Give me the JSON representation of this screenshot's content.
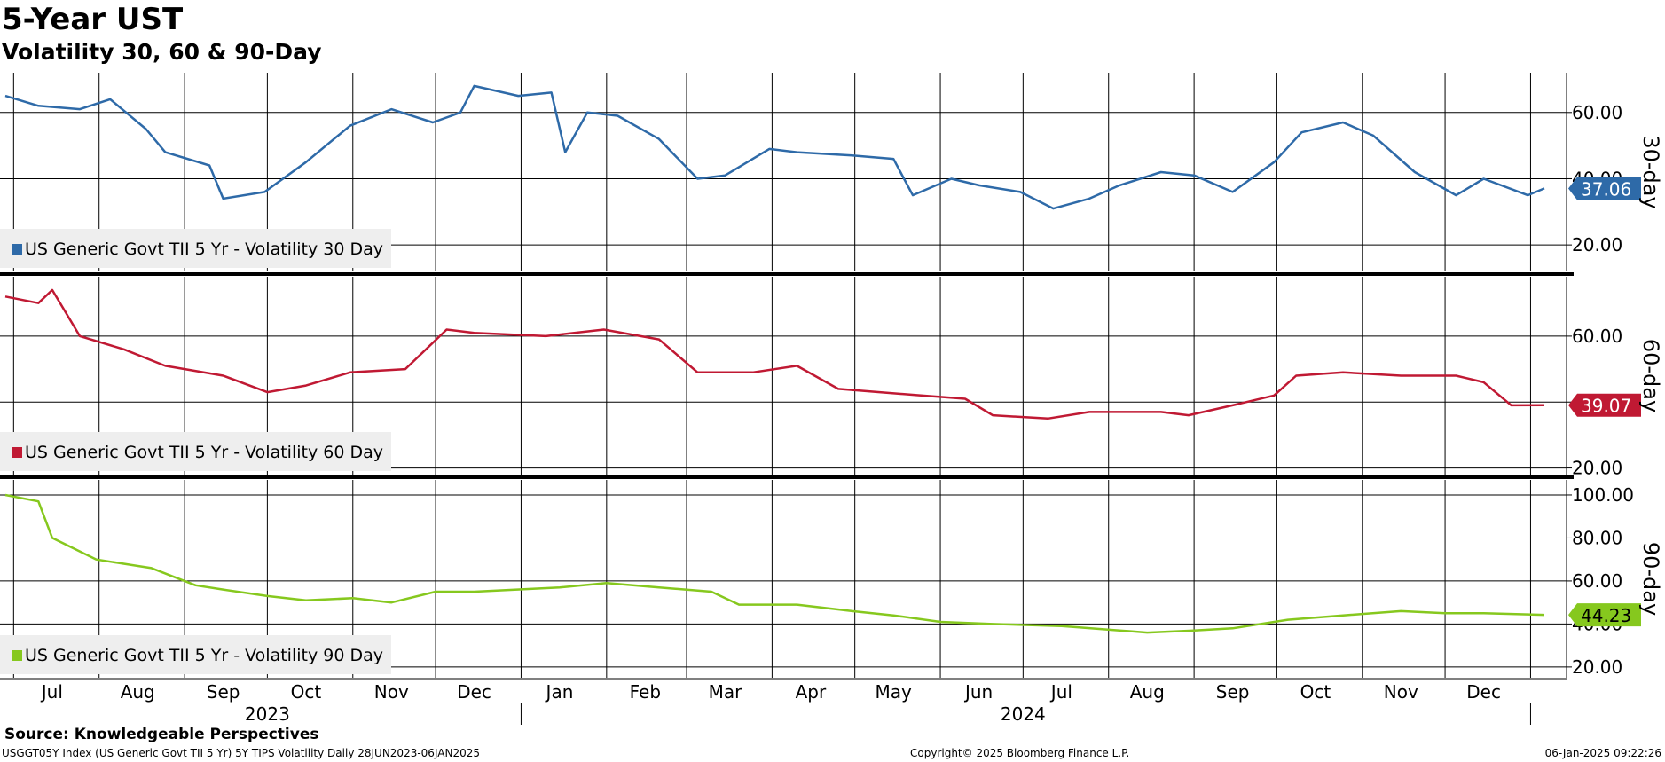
{
  "header": {
    "title": "5-Year UST",
    "subtitle": "Volatility 30, 60 & 90-Day"
  },
  "footer": {
    "source": "Source: Knowledgeable Perspectives",
    "description": "USGGT05Y Index (US Generic Govt TII 5 Yr) 5Y TIPS Volatility  Daily 28JUN2023-06JAN2025",
    "copyright": "Copyright© 2025 Bloomberg Finance L.P.",
    "timestamp": "06-Jan-2025 09:22:26"
  },
  "chart_data": [
    {
      "type": "line",
      "axis_title": "30-day",
      "legend": "US Generic Govt TII 5 Yr - Volatility 30 Day",
      "color": "#2e6aa8",
      "last_value": "37.06",
      "ylim": [
        12,
        72
      ],
      "yticks": [
        {
          "v": 20,
          "label": "20.00"
        },
        {
          "v": 40,
          "label": "40.00"
        },
        {
          "v": 60,
          "label": "60.00"
        }
      ],
      "x": [
        "2023-06-28",
        "2023-07-10",
        "2023-07-25",
        "2023-08-05",
        "2023-08-18",
        "2023-08-25",
        "2023-09-10",
        "2023-09-15",
        "2023-09-30",
        "2023-10-15",
        "2023-10-31",
        "2023-11-15",
        "2023-11-30",
        "2023-12-10",
        "2023-12-15",
        "2023-12-31",
        "2024-01-12",
        "2024-01-17",
        "2024-01-25",
        "2024-02-05",
        "2024-02-20",
        "2024-03-05",
        "2024-03-15",
        "2024-03-31",
        "2024-04-10",
        "2024-04-30",
        "2024-05-15",
        "2024-05-22",
        "2024-06-05",
        "2024-06-15",
        "2024-06-30",
        "2024-07-12",
        "2024-07-25",
        "2024-08-05",
        "2024-08-20",
        "2024-09-01",
        "2024-09-15",
        "2024-09-30",
        "2024-10-10",
        "2024-10-25",
        "2024-11-05",
        "2024-11-20",
        "2024-12-05",
        "2024-12-15",
        "2024-12-31",
        "2025-01-06"
      ],
      "values": [
        65,
        62,
        61,
        64,
        55,
        48,
        44,
        34,
        36,
        45,
        56,
        61,
        57,
        60,
        68,
        65,
        66,
        48,
        60,
        59,
        52,
        40,
        41,
        49,
        48,
        47,
        46,
        35,
        40,
        38,
        36,
        31,
        34,
        38,
        42,
        41,
        36,
        45,
        54,
        57,
        53,
        42,
        35,
        40,
        35,
        37.06
      ]
    },
    {
      "type": "line",
      "axis_title": "60-day",
      "legend": "US Generic Govt TII 5 Yr - Volatility 60 Day",
      "color": "#c01933",
      "last_value": "39.07",
      "ylim": [
        18,
        78
      ],
      "yticks": [
        {
          "v": 20,
          "label": "20.00"
        },
        {
          "v": 40,
          "label": "40.00"
        },
        {
          "v": 60,
          "label": "60.00"
        }
      ],
      "x": [
        "2023-06-28",
        "2023-07-10",
        "2023-07-15",
        "2023-07-25",
        "2023-08-10",
        "2023-08-25",
        "2023-09-15",
        "2023-10-01",
        "2023-10-15",
        "2023-10-31",
        "2023-11-20",
        "2023-12-05",
        "2023-12-15",
        "2024-01-10",
        "2024-01-31",
        "2024-02-20",
        "2024-03-05",
        "2024-03-25",
        "2024-04-10",
        "2024-04-25",
        "2024-05-10",
        "2024-05-25",
        "2024-06-10",
        "2024-06-20",
        "2024-07-10",
        "2024-07-25",
        "2024-08-20",
        "2024-08-30",
        "2024-09-15",
        "2024-09-30",
        "2024-10-08",
        "2024-10-25",
        "2024-11-15",
        "2024-12-05",
        "2024-12-15",
        "2024-12-25",
        "2025-01-06"
      ],
      "values": [
        72,
        70,
        74,
        60,
        56,
        51,
        48,
        43,
        45,
        49,
        50,
        62,
        61,
        60,
        62,
        59,
        49,
        49,
        51,
        44,
        43,
        42,
        41,
        36,
        35,
        37,
        37,
        36,
        39,
        42,
        48,
        49,
        48,
        48,
        46,
        39,
        39.07
      ]
    },
    {
      "type": "line",
      "axis_title": "90-day",
      "legend": "US Generic Govt TII 5 Yr - Volatility 90 Day",
      "color": "#86c81e",
      "last_value": "44.23",
      "ylim": [
        15,
        107
      ],
      "yticks": [
        {
          "v": 20,
          "label": "20.00"
        },
        {
          "v": 40,
          "label": "40.00"
        },
        {
          "v": 60,
          "label": "60.00"
        },
        {
          "v": 80,
          "label": "80.00"
        },
        {
          "v": 100,
          "label": "100.00"
        }
      ],
      "x": [
        "2023-06-28",
        "2023-07-10",
        "2023-07-15",
        "2023-07-31",
        "2023-08-20",
        "2023-09-05",
        "2023-09-15",
        "2023-10-01",
        "2023-10-15",
        "2023-11-01",
        "2023-11-15",
        "2023-12-01",
        "2023-12-15",
        "2024-01-15",
        "2024-02-01",
        "2024-02-20",
        "2024-03-10",
        "2024-03-20",
        "2024-04-10",
        "2024-04-30",
        "2024-05-15",
        "2024-06-01",
        "2024-06-20",
        "2024-07-15",
        "2024-08-05",
        "2024-08-15",
        "2024-09-01",
        "2024-09-15",
        "2024-10-05",
        "2024-10-25",
        "2024-11-15",
        "2024-12-01",
        "2024-12-15",
        "2025-01-06"
      ],
      "values": [
        100,
        97,
        80,
        70,
        66,
        58,
        56,
        53,
        51,
        52,
        50,
        55,
        55,
        57,
        59,
        57,
        55,
        49,
        49,
        46,
        44,
        41,
        40,
        39,
        37,
        36,
        37,
        38,
        42,
        44,
        46,
        45,
        45,
        44.23
      ]
    }
  ],
  "x_axis": {
    "months": [
      {
        "date": "2023-07-15",
        "label": "Jul"
      },
      {
        "date": "2023-08-15",
        "label": "Aug"
      },
      {
        "date": "2023-09-15",
        "label": "Sep"
      },
      {
        "date": "2023-10-15",
        "label": "Oct"
      },
      {
        "date": "2023-11-15",
        "label": "Nov"
      },
      {
        "date": "2023-12-15",
        "label": "Dec"
      },
      {
        "date": "2024-01-15",
        "label": "Jan"
      },
      {
        "date": "2024-02-15",
        "label": "Feb"
      },
      {
        "date": "2024-03-15",
        "label": "Mar"
      },
      {
        "date": "2024-04-15",
        "label": "Apr"
      },
      {
        "date": "2024-05-15",
        "label": "May"
      },
      {
        "date": "2024-06-15",
        "label": "Jun"
      },
      {
        "date": "2024-07-15",
        "label": "Jul"
      },
      {
        "date": "2024-08-15",
        "label": "Aug"
      },
      {
        "date": "2024-09-15",
        "label": "Sep"
      },
      {
        "date": "2024-10-15",
        "label": "Oct"
      },
      {
        "date": "2024-11-15",
        "label": "Nov"
      },
      {
        "date": "2024-12-15",
        "label": "Dec"
      }
    ],
    "gridlines": [
      "2023-07-01",
      "2023-08-01",
      "2023-09-01",
      "2023-10-01",
      "2023-11-01",
      "2023-12-01",
      "2024-01-01",
      "2024-02-01",
      "2024-03-01",
      "2024-04-01",
      "2024-05-01",
      "2024-06-01",
      "2024-07-01",
      "2024-08-01",
      "2024-09-01",
      "2024-10-01",
      "2024-11-01",
      "2024-12-01",
      "2025-01-01"
    ],
    "years": [
      {
        "date": "2023-10-01",
        "label": "2023"
      },
      {
        "date": "2024-07-01",
        "label": "2024"
      }
    ],
    "year_separators": [
      "2024-01-01",
      "2025-01-01"
    ],
    "range": [
      "2023-06-28",
      "2025-01-06"
    ]
  }
}
